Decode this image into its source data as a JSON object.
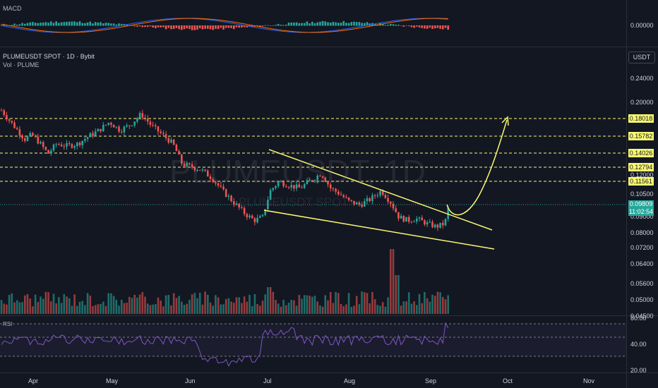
{
  "macd": {
    "label": "MACD",
    "value": "0.00000"
  },
  "header": {
    "title": "PLUMEUSDT SPOT · 1D · Bybit",
    "vol_label": "Vol · PLUME",
    "unit": "USDT"
  },
  "watermark": {
    "symbol": "PLUMEUSDT, 1D",
    "subtitle": "PLUMEUSDT SPOT"
  },
  "price_axis": [
    "0.24000",
    "0.20000",
    "0.12000",
    "0.10500",
    "0.09000",
    "0.08000",
    "0.07200",
    "0.06400",
    "0.05600",
    "0.05000",
    "0.04500"
  ],
  "levels": [
    "0.18018",
    "0.15782",
    "0.14026",
    "0.12794",
    "0.11561"
  ],
  "current_price": {
    "value": "0.09809",
    "countdown": "11:02:54"
  },
  "rsi": {
    "label": "RSI",
    "axis": [
      "80.00",
      "40.00",
      "20.00"
    ]
  },
  "months": [
    "Apr",
    "May",
    "Jun",
    "Jul",
    "Aug",
    "Sep",
    "Oct",
    "Nov"
  ],
  "colors": {
    "up": "#26a69a",
    "down": "#ef5350",
    "levels": "#f9f871",
    "background": "#131722",
    "rsi_line": "#7e57c2"
  }
}
